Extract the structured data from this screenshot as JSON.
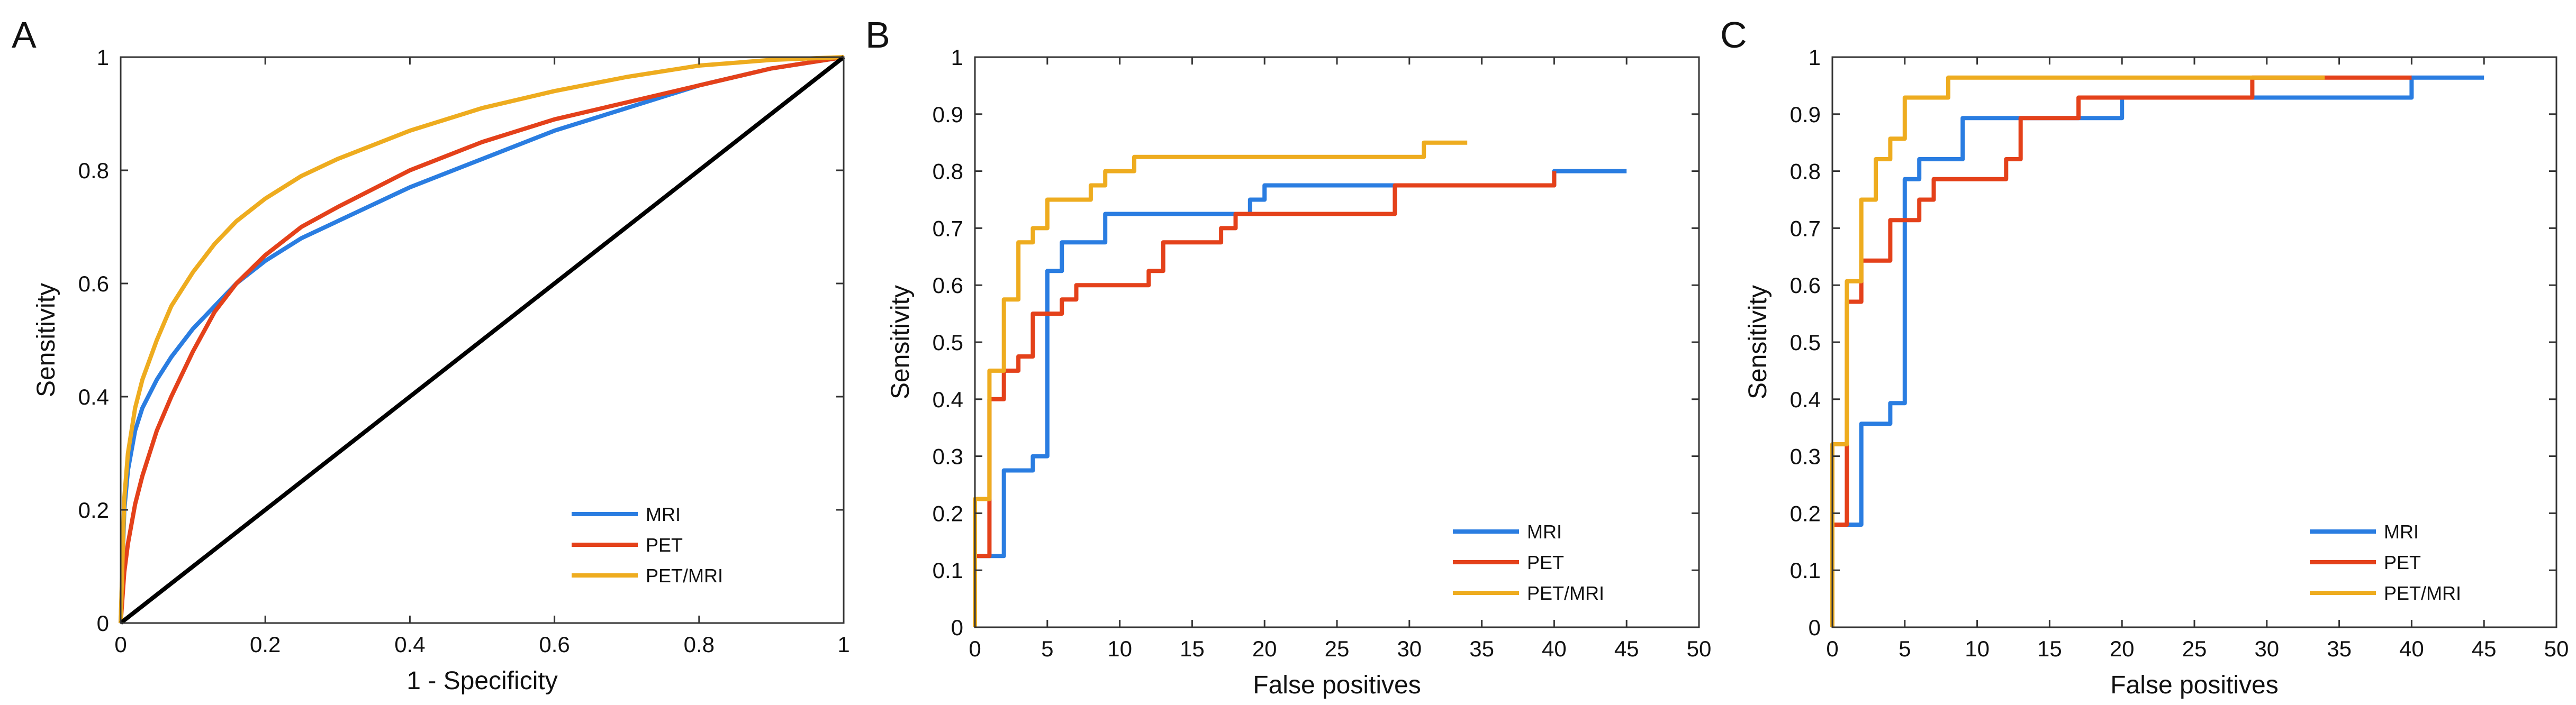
{
  "chart_data": [
    {
      "panel": "A",
      "type": "line",
      "title": "",
      "xlabel": "1 - Specificity",
      "ylabel": "Sensitivity",
      "xlim": [
        0,
        1
      ],
      "ylim": [
        0,
        1
      ],
      "xticks": [
        0,
        0.2,
        0.4,
        0.6,
        0.8,
        1
      ],
      "xtick_labels": [
        "0",
        "0.2",
        "0.4",
        "0.6",
        "0.8",
        "1"
      ],
      "yticks": [
        0,
        0.2,
        0.4,
        0.6,
        0.8,
        1
      ],
      "ytick_labels": [
        "0",
        "0.2",
        "0.4",
        "0.6",
        "0.8",
        "1"
      ],
      "grid": false,
      "legend_position": "bottom-right",
      "series": [
        {
          "name": "MRI",
          "color": "#2a7de1",
          "legend": true,
          "x": [
            0,
            0.005,
            0.01,
            0.02,
            0.03,
            0.05,
            0.07,
            0.1,
            0.13,
            0.16,
            0.2,
            0.25,
            0.3,
            0.4,
            0.5,
            0.6,
            0.7,
            0.8,
            0.9,
            1.0
          ],
          "y": [
            0,
            0.2,
            0.27,
            0.34,
            0.38,
            0.43,
            0.47,
            0.52,
            0.56,
            0.6,
            0.64,
            0.68,
            0.71,
            0.77,
            0.82,
            0.87,
            0.91,
            0.95,
            0.98,
            1.0
          ]
        },
        {
          "name": "PET",
          "color": "#e4411a",
          "legend": true,
          "x": [
            0,
            0.005,
            0.01,
            0.02,
            0.03,
            0.05,
            0.07,
            0.1,
            0.13,
            0.16,
            0.2,
            0.25,
            0.3,
            0.4,
            0.5,
            0.6,
            0.7,
            0.8,
            0.9,
            1.0
          ],
          "y": [
            0,
            0.09,
            0.14,
            0.21,
            0.26,
            0.34,
            0.4,
            0.48,
            0.55,
            0.6,
            0.65,
            0.7,
            0.735,
            0.8,
            0.85,
            0.89,
            0.92,
            0.95,
            0.98,
            1.0
          ]
        },
        {
          "name": "PET/MRI",
          "color": "#eeac1f",
          "legend": true,
          "x": [
            0,
            0.005,
            0.01,
            0.02,
            0.03,
            0.05,
            0.07,
            0.1,
            0.13,
            0.16,
            0.2,
            0.25,
            0.3,
            0.4,
            0.5,
            0.6,
            0.7,
            0.8,
            0.9,
            1.0
          ],
          "y": [
            0,
            0.22,
            0.3,
            0.38,
            0.43,
            0.5,
            0.56,
            0.62,
            0.67,
            0.71,
            0.75,
            0.79,
            0.82,
            0.87,
            0.91,
            0.94,
            0.965,
            0.985,
            0.995,
            1.0
          ]
        },
        {
          "name": "Chance",
          "color": "#000000",
          "legend": false,
          "x": [
            0,
            1
          ],
          "y": [
            0,
            1
          ]
        }
      ]
    },
    {
      "panel": "B",
      "type": "line",
      "step": true,
      "title": "",
      "xlabel": "False positives",
      "ylabel": "Sensitivity",
      "xlim": [
        0,
        50
      ],
      "ylim": [
        0,
        1
      ],
      "xticks": [
        0,
        5,
        10,
        15,
        20,
        25,
        30,
        35,
        40,
        45,
        50
      ],
      "xtick_labels": [
        "0",
        "5",
        "10",
        "15",
        "20",
        "25",
        "30",
        "35",
        "40",
        "45",
        "50"
      ],
      "yticks": [
        0,
        0.1,
        0.2,
        0.3,
        0.4,
        0.5,
        0.6,
        0.7,
        0.8,
        0.9,
        1
      ],
      "ytick_labels": [
        "0",
        "0.1",
        "0.2",
        "0.3",
        "0.4",
        "0.5",
        "0.6",
        "0.7",
        "0.8",
        "0.9",
        "1"
      ],
      "grid": false,
      "legend_position": "bottom-right",
      "series": [
        {
          "name": "MRI",
          "color": "#2a7de1",
          "legend": true,
          "x": [
            0,
            0,
            2,
            2,
            4,
            4,
            5,
            5,
            6,
            6,
            9,
            9,
            19,
            19,
            20,
            20,
            40,
            40,
            45
          ],
          "y": [
            0,
            0.125,
            0.125,
            0.275,
            0.275,
            0.3,
            0.3,
            0.625,
            0.625,
            0.675,
            0.675,
            0.725,
            0.725,
            0.75,
            0.75,
            0.775,
            0.775,
            0.8,
            0.8
          ]
        },
        {
          "name": "PET",
          "color": "#e4411a",
          "legend": true,
          "x": [
            0,
            0,
            1,
            1,
            2,
            2,
            3,
            3,
            4,
            4,
            6,
            6,
            7,
            7,
            9,
            9,
            12,
            12,
            13,
            13,
            17,
            17,
            18,
            18,
            29,
            29,
            40,
            40
          ],
          "y": [
            0,
            0.125,
            0.125,
            0.4,
            0.4,
            0.45,
            0.45,
            0.475,
            0.475,
            0.55,
            0.55,
            0.575,
            0.575,
            0.6,
            0.6,
            0.6,
            0.6,
            0.625,
            0.625,
            0.675,
            0.675,
            0.7,
            0.7,
            0.725,
            0.725,
            0.775,
            0.775,
            0.8
          ]
        },
        {
          "name": "PET/MRI",
          "color": "#eeac1f",
          "legend": true,
          "x": [
            0,
            0,
            1,
            1,
            2,
            2,
            3,
            3,
            4,
            4,
            5,
            5,
            8,
            8,
            9,
            9,
            11,
            11,
            31,
            31,
            34
          ],
          "y": [
            0,
            0.225,
            0.225,
            0.45,
            0.45,
            0.575,
            0.575,
            0.675,
            0.675,
            0.7,
            0.7,
            0.75,
            0.75,
            0.775,
            0.775,
            0.8,
            0.8,
            0.825,
            0.825,
            0.85,
            0.85
          ]
        }
      ]
    },
    {
      "panel": "C",
      "type": "line",
      "step": true,
      "title": "",
      "xlabel": "False positives",
      "ylabel": "Sensitivity",
      "xlim": [
        0,
        50
      ],
      "ylim": [
        0,
        1
      ],
      "xticks": [
        0,
        5,
        10,
        15,
        20,
        25,
        30,
        35,
        40,
        45,
        50
      ],
      "xtick_labels": [
        "0",
        "5",
        "10",
        "15",
        "20",
        "25",
        "30",
        "35",
        "40",
        "45",
        "50"
      ],
      "yticks": [
        0,
        0.1,
        0.2,
        0.3,
        0.4,
        0.5,
        0.6,
        0.7,
        0.8,
        0.9,
        1
      ],
      "ytick_labels": [
        "0",
        "0.1",
        "0.2",
        "0.3",
        "0.4",
        "0.5",
        "0.6",
        "0.7",
        "0.8",
        "0.9",
        "1"
      ],
      "grid": false,
      "legend_position": "bottom-right",
      "series": [
        {
          "name": "MRI",
          "color": "#2a7de1",
          "legend": true,
          "x": [
            0,
            0,
            2,
            2,
            4,
            4,
            5,
            5,
            6,
            6,
            9,
            9,
            20,
            20,
            29,
            29,
            40,
            40,
            45
          ],
          "y": [
            0,
            0.18,
            0.18,
            0.357,
            0.357,
            0.393,
            0.393,
            0.786,
            0.786,
            0.821,
            0.821,
            0.893,
            0.893,
            0.929,
            0.929,
            0.929,
            0.929,
            0.964,
            0.964
          ]
        },
        {
          "name": "PET",
          "color": "#e4411a",
          "legend": true,
          "x": [
            0,
            0,
            1,
            1,
            2,
            2,
            4,
            4,
            6,
            6,
            7,
            7,
            12,
            12,
            13,
            13,
            17,
            17,
            29,
            29,
            40
          ],
          "y": [
            0,
            0.18,
            0.18,
            0.571,
            0.571,
            0.643,
            0.643,
            0.714,
            0.714,
            0.75,
            0.75,
            0.786,
            0.786,
            0.821,
            0.821,
            0.893,
            0.893,
            0.929,
            0.929,
            0.964,
            0.964
          ]
        },
        {
          "name": "PET/MRI",
          "color": "#eeac1f",
          "legend": true,
          "x": [
            0,
            0,
            1,
            1,
            2,
            2,
            3,
            3,
            4,
            4,
            5,
            5,
            8,
            8,
            34
          ],
          "y": [
            0,
            0.321,
            0.321,
            0.607,
            0.607,
            0.75,
            0.75,
            0.821,
            0.821,
            0.857,
            0.857,
            0.929,
            0.929,
            0.964,
            0.964
          ]
        }
      ]
    }
  ]
}
